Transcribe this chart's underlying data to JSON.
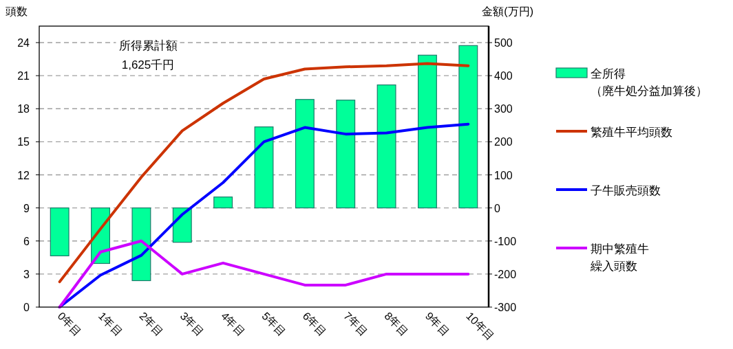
{
  "chart_data": {
    "type": "bar",
    "ylabel": "頭数",
    "y2label": "金額(万円)",
    "categories": [
      "0年目",
      "1年目",
      "2年目",
      "3年目",
      "4年目",
      "5年目",
      "6年目",
      "7年目",
      "8年目",
      "9年目",
      "10年目"
    ],
    "series": [
      {
        "name": "全所得（廃牛処分益加算後）",
        "axis": "y2",
        "color": "#00ff99",
        "values": [
          -145,
          -168,
          -220,
          -104,
          33,
          245,
          328,
          326,
          372,
          462,
          491
        ]
      },
      {
        "name": "繁殖牛平均頭数",
        "type": "line",
        "color": "#cc3300",
        "values": [
          2.3,
          7.1,
          11.8,
          16.0,
          18.5,
          20.7,
          21.6,
          21.8,
          21.9,
          22.1,
          21.9
        ]
      },
      {
        "name": "子牛販売頭数",
        "type": "line",
        "color": "#0000ff",
        "values": [
          0,
          2.9,
          4.7,
          8.4,
          11.3,
          15.0,
          16.3,
          15.7,
          15.8,
          16.3,
          16.6
        ]
      },
      {
        "name": "期中繁殖牛繰入頭数",
        "type": "line",
        "color": "#cc00ff",
        "values": [
          0,
          5,
          6,
          3,
          4,
          3,
          2,
          2,
          3,
          3,
          3
        ]
      }
    ],
    "ylim": [
      0,
      24
    ],
    "yticks": [
      0,
      3,
      6,
      9,
      12,
      15,
      18,
      21,
      24
    ],
    "y2lim": [
      -300,
      500
    ],
    "y2ticks": [
      -300,
      -200,
      -100,
      0,
      100,
      200,
      300,
      400,
      500
    ],
    "grid": "y",
    "legend": "right",
    "marker": "none",
    "annotations": [
      "所得累計額",
      "1,625千円"
    ]
  }
}
